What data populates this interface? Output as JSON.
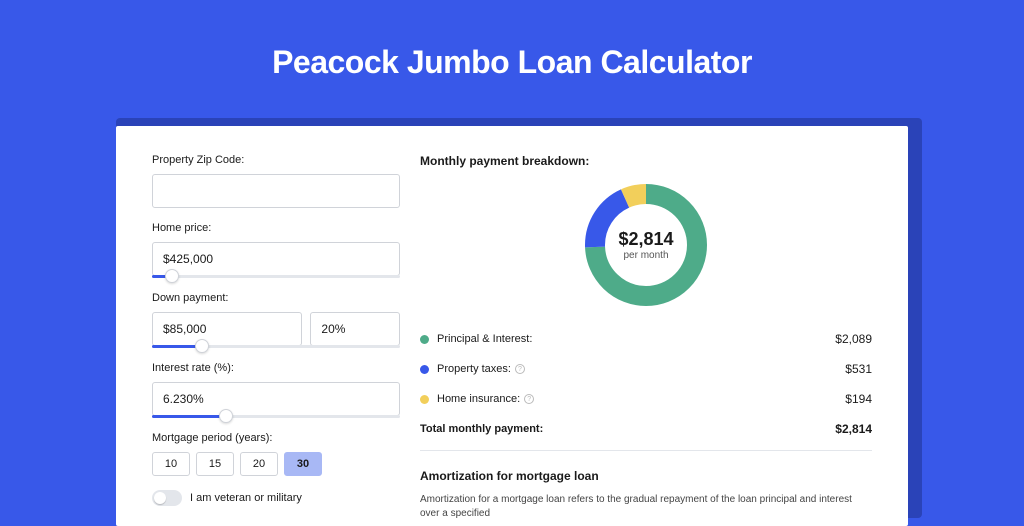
{
  "page": {
    "title": "Peacock Jumbo Loan Calculator",
    "bg_color": "#3858e9",
    "title_color": "#ffffff",
    "title_fontsize": 32
  },
  "form": {
    "zip": {
      "label": "Property Zip Code:",
      "value": ""
    },
    "price": {
      "label": "Home price:",
      "value": "$425,000",
      "slider_pct": 8
    },
    "down": {
      "label": "Down payment:",
      "value": "$85,000",
      "pct": "20%",
      "slider_pct": 20
    },
    "rate": {
      "label": "Interest rate (%):",
      "value": "6.230%",
      "slider_pct": 30
    },
    "period": {
      "label": "Mortgage period (years):",
      "options": [
        "10",
        "15",
        "20",
        "30"
      ],
      "selected": "30"
    },
    "veteran": {
      "label": "I am veteran or military",
      "checked": false
    }
  },
  "breakdown": {
    "title": "Monthly payment breakdown:",
    "donut": {
      "amount": "$2,814",
      "sub": "per month",
      "radius": 61,
      "stroke": 20,
      "slices": [
        {
          "key": "pi",
          "color": "#4eab89",
          "value": 2089
        },
        {
          "key": "tax",
          "color": "#3858e9",
          "value": 531
        },
        {
          "key": "ins",
          "color": "#f2cf5b",
          "value": 194
        }
      ],
      "total": 2814
    },
    "items": [
      {
        "key": "pi",
        "label": "Principal & Interest:",
        "value": "$2,089",
        "color": "#4eab89",
        "info": false
      },
      {
        "key": "tax",
        "label": "Property taxes:",
        "value": "$531",
        "color": "#3858e9",
        "info": true
      },
      {
        "key": "ins",
        "label": "Home insurance:",
        "value": "$194",
        "color": "#f2cf5b",
        "info": true
      }
    ],
    "total": {
      "label": "Total monthly payment:",
      "value": "$2,814"
    }
  },
  "amort": {
    "title": "Amortization for mortgage loan",
    "text": "Amortization for a mortgage loan refers to the gradual repayment of the loan principal and interest over a specified"
  },
  "colors": {
    "input_border": "#d0d3d9",
    "slider_track": "#e3e6eb",
    "slider_fill": "#3858e9",
    "text": "#1a1a1a"
  }
}
